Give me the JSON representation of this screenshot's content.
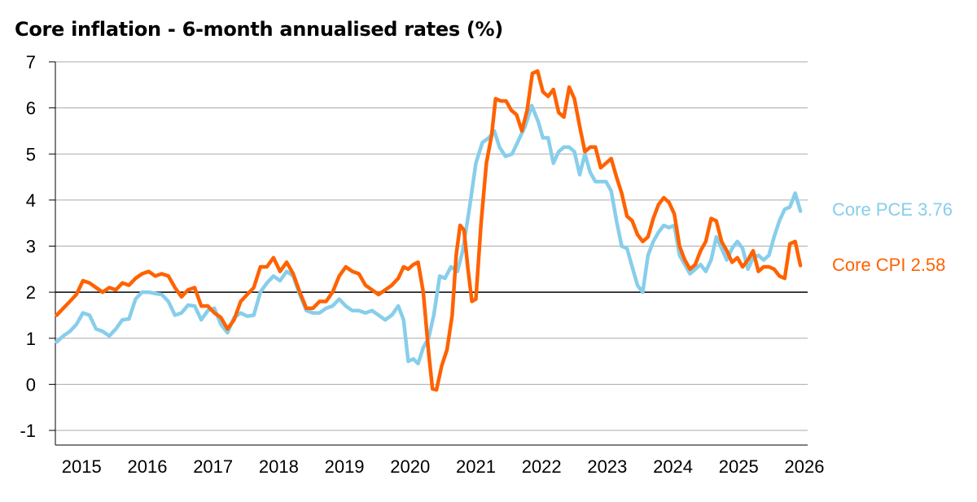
{
  "chart_data": {
    "type": "line",
    "title": "Core inflation - 6-month annualised rates (%)",
    "xlabel": "",
    "ylabel": "",
    "ylim": [
      -1,
      7
    ],
    "xlim": [
      2014.6,
      2026.05
    ],
    "yticks": [
      -1,
      0,
      1,
      2,
      3,
      4,
      5,
      6,
      7
    ],
    "xticks": [
      "2015",
      "2016",
      "2017",
      "2018",
      "2019",
      "2020",
      "2021",
      "2022",
      "2023",
      "2024",
      "2025",
      "2026"
    ],
    "grid": true,
    "reference_line": 2,
    "legend": "right, inline labels at series ends",
    "series": [
      {
        "name": "Core PCE",
        "end_label": "Core PCE 3.76",
        "color": "#87CEEB",
        "points": [
          [
            2014.62,
            0.92
          ],
          [
            2014.72,
            1.05
          ],
          [
            2014.82,
            1.15
          ],
          [
            2014.92,
            1.3
          ],
          [
            2015.02,
            1.55
          ],
          [
            2015.12,
            1.5
          ],
          [
            2015.22,
            1.2
          ],
          [
            2015.32,
            1.15
          ],
          [
            2015.42,
            1.05
          ],
          [
            2015.52,
            1.2
          ],
          [
            2015.62,
            1.4
          ],
          [
            2015.72,
            1.42
          ],
          [
            2015.82,
            1.85
          ],
          [
            2015.92,
            2.0
          ],
          [
            2016.02,
            2.0
          ],
          [
            2016.12,
            1.97
          ],
          [
            2016.22,
            1.95
          ],
          [
            2016.32,
            1.8
          ],
          [
            2016.42,
            1.5
          ],
          [
            2016.52,
            1.55
          ],
          [
            2016.62,
            1.72
          ],
          [
            2016.72,
            1.7
          ],
          [
            2016.82,
            1.4
          ],
          [
            2016.92,
            1.6
          ],
          [
            2017.02,
            1.65
          ],
          [
            2017.12,
            1.3
          ],
          [
            2017.22,
            1.12
          ],
          [
            2017.32,
            1.45
          ],
          [
            2017.42,
            1.55
          ],
          [
            2017.52,
            1.48
          ],
          [
            2017.62,
            1.5
          ],
          [
            2017.72,
            2.0
          ],
          [
            2017.82,
            2.2
          ],
          [
            2017.92,
            2.35
          ],
          [
            2018.02,
            2.25
          ],
          [
            2018.12,
            2.45
          ],
          [
            2018.22,
            2.35
          ],
          [
            2018.32,
            1.95
          ],
          [
            2018.42,
            1.6
          ],
          [
            2018.52,
            1.55
          ],
          [
            2018.62,
            1.55
          ],
          [
            2018.72,
            1.65
          ],
          [
            2018.82,
            1.7
          ],
          [
            2018.92,
            1.85
          ],
          [
            2019.02,
            1.7
          ],
          [
            2019.12,
            1.6
          ],
          [
            2019.22,
            1.6
          ],
          [
            2019.32,
            1.55
          ],
          [
            2019.42,
            1.6
          ],
          [
            2019.52,
            1.5
          ],
          [
            2019.62,
            1.4
          ],
          [
            2019.72,
            1.5
          ],
          [
            2019.82,
            1.7
          ],
          [
            2019.9,
            1.4
          ],
          [
            2019.97,
            0.5
          ],
          [
            2020.05,
            0.55
          ],
          [
            2020.12,
            0.45
          ],
          [
            2020.2,
            0.8
          ],
          [
            2020.28,
            1.0
          ],
          [
            2020.36,
            1.5
          ],
          [
            2020.45,
            2.35
          ],
          [
            2020.53,
            2.3
          ],
          [
            2020.62,
            2.55
          ],
          [
            2020.72,
            2.45
          ],
          [
            2020.8,
            2.9
          ],
          [
            2020.9,
            3.8
          ],
          [
            2021.0,
            4.8
          ],
          [
            2021.1,
            5.25
          ],
          [
            2021.2,
            5.35
          ],
          [
            2021.28,
            5.5
          ],
          [
            2021.36,
            5.15
          ],
          [
            2021.45,
            4.95
          ],
          [
            2021.55,
            5.0
          ],
          [
            2021.65,
            5.3
          ],
          [
            2021.75,
            5.6
          ],
          [
            2021.85,
            6.05
          ],
          [
            2021.95,
            5.7
          ],
          [
            2022.02,
            5.35
          ],
          [
            2022.1,
            5.35
          ],
          [
            2022.18,
            4.8
          ],
          [
            2022.26,
            5.05
          ],
          [
            2022.34,
            5.15
          ],
          [
            2022.42,
            5.15
          ],
          [
            2022.5,
            5.05
          ],
          [
            2022.58,
            4.55
          ],
          [
            2022.66,
            5.0
          ],
          [
            2022.74,
            4.6
          ],
          [
            2022.82,
            4.4
          ],
          [
            2022.9,
            4.4
          ],
          [
            2022.98,
            4.4
          ],
          [
            2023.06,
            4.2
          ],
          [
            2023.14,
            3.55
          ],
          [
            2023.22,
            3.0
          ],
          [
            2023.3,
            2.95
          ],
          [
            2023.38,
            2.55
          ],
          [
            2023.46,
            2.15
          ],
          [
            2023.54,
            2.0
          ],
          [
            2023.62,
            2.8
          ],
          [
            2023.7,
            3.1
          ],
          [
            2023.78,
            3.3
          ],
          [
            2023.86,
            3.45
          ],
          [
            2023.94,
            3.4
          ],
          [
            2024.02,
            3.45
          ],
          [
            2024.1,
            2.8
          ],
          [
            2024.18,
            2.6
          ],
          [
            2024.26,
            2.4
          ],
          [
            2024.34,
            2.5
          ],
          [
            2024.42,
            2.6
          ],
          [
            2024.5,
            2.45
          ],
          [
            2024.58,
            2.7
          ],
          [
            2024.66,
            3.2
          ],
          [
            2024.74,
            2.95
          ],
          [
            2024.82,
            2.7
          ],
          [
            2024.9,
            2.95
          ],
          [
            2024.98,
            3.1
          ],
          [
            2025.06,
            2.95
          ],
          [
            2025.14,
            2.5
          ],
          [
            2025.22,
            2.75
          ],
          [
            2025.3,
            2.8
          ],
          [
            2025.38,
            2.7
          ],
          [
            2025.46,
            2.8
          ],
          [
            2025.54,
            3.2
          ],
          [
            2025.62,
            3.55
          ],
          [
            2025.7,
            3.8
          ],
          [
            2025.78,
            3.85
          ],
          [
            2025.86,
            4.15
          ],
          [
            2025.94,
            3.76
          ]
        ]
      },
      {
        "name": "Core CPI",
        "end_label": "Core CPI 2.58",
        "color": "#FF6200",
        "points": [
          [
            2014.62,
            1.5
          ],
          [
            2014.72,
            1.65
          ],
          [
            2014.82,
            1.8
          ],
          [
            2014.92,
            1.95
          ],
          [
            2015.02,
            2.25
          ],
          [
            2015.12,
            2.2
          ],
          [
            2015.22,
            2.1
          ],
          [
            2015.32,
            2.0
          ],
          [
            2015.42,
            2.1
          ],
          [
            2015.52,
            2.05
          ],
          [
            2015.62,
            2.2
          ],
          [
            2015.72,
            2.15
          ],
          [
            2015.82,
            2.3
          ],
          [
            2015.92,
            2.4
          ],
          [
            2016.02,
            2.45
          ],
          [
            2016.12,
            2.35
          ],
          [
            2016.22,
            2.4
          ],
          [
            2016.32,
            2.35
          ],
          [
            2016.42,
            2.1
          ],
          [
            2016.52,
            1.9
          ],
          [
            2016.62,
            2.05
          ],
          [
            2016.72,
            2.1
          ],
          [
            2016.82,
            1.7
          ],
          [
            2016.92,
            1.7
          ],
          [
            2017.02,
            1.55
          ],
          [
            2017.12,
            1.45
          ],
          [
            2017.22,
            1.2
          ],
          [
            2017.32,
            1.4
          ],
          [
            2017.42,
            1.8
          ],
          [
            2017.52,
            1.95
          ],
          [
            2017.62,
            2.1
          ],
          [
            2017.72,
            2.55
          ],
          [
            2017.82,
            2.55
          ],
          [
            2017.92,
            2.75
          ],
          [
            2018.02,
            2.45
          ],
          [
            2018.12,
            2.65
          ],
          [
            2018.22,
            2.4
          ],
          [
            2018.32,
            2.0
          ],
          [
            2018.42,
            1.65
          ],
          [
            2018.52,
            1.65
          ],
          [
            2018.62,
            1.8
          ],
          [
            2018.72,
            1.8
          ],
          [
            2018.82,
            2.0
          ],
          [
            2018.92,
            2.35
          ],
          [
            2019.02,
            2.55
          ],
          [
            2019.12,
            2.45
          ],
          [
            2019.22,
            2.4
          ],
          [
            2019.32,
            2.15
          ],
          [
            2019.42,
            2.05
          ],
          [
            2019.52,
            1.95
          ],
          [
            2019.62,
            2.05
          ],
          [
            2019.72,
            2.15
          ],
          [
            2019.82,
            2.3
          ],
          [
            2019.9,
            2.55
          ],
          [
            2019.97,
            2.5
          ],
          [
            2020.05,
            2.6
          ],
          [
            2020.12,
            2.65
          ],
          [
            2020.2,
            2.0
          ],
          [
            2020.28,
            0.7
          ],
          [
            2020.34,
            -0.1
          ],
          [
            2020.4,
            -0.12
          ],
          [
            2020.48,
            0.4
          ],
          [
            2020.56,
            0.75
          ],
          [
            2020.64,
            1.5
          ],
          [
            2020.7,
            2.8
          ],
          [
            2020.76,
            3.45
          ],
          [
            2020.82,
            3.35
          ],
          [
            2020.88,
            2.5
          ],
          [
            2020.94,
            1.8
          ],
          [
            2021.0,
            1.85
          ],
          [
            2021.08,
            3.5
          ],
          [
            2021.16,
            4.8
          ],
          [
            2021.24,
            5.4
          ],
          [
            2021.3,
            6.2
          ],
          [
            2021.38,
            6.15
          ],
          [
            2021.46,
            6.15
          ],
          [
            2021.54,
            5.95
          ],
          [
            2021.62,
            5.85
          ],
          [
            2021.7,
            5.5
          ],
          [
            2021.78,
            5.95
          ],
          [
            2021.86,
            6.75
          ],
          [
            2021.94,
            6.8
          ],
          [
            2022.02,
            6.35
          ],
          [
            2022.1,
            6.25
          ],
          [
            2022.18,
            6.4
          ],
          [
            2022.26,
            5.9
          ],
          [
            2022.34,
            5.8
          ],
          [
            2022.42,
            6.45
          ],
          [
            2022.5,
            6.2
          ],
          [
            2022.58,
            5.6
          ],
          [
            2022.66,
            5.05
          ],
          [
            2022.74,
            5.15
          ],
          [
            2022.82,
            5.15
          ],
          [
            2022.9,
            4.7
          ],
          [
            2022.98,
            4.8
          ],
          [
            2023.06,
            4.9
          ],
          [
            2023.14,
            4.5
          ],
          [
            2023.22,
            4.15
          ],
          [
            2023.3,
            3.65
          ],
          [
            2023.38,
            3.55
          ],
          [
            2023.46,
            3.25
          ],
          [
            2023.54,
            3.1
          ],
          [
            2023.62,
            3.2
          ],
          [
            2023.7,
            3.6
          ],
          [
            2023.78,
            3.9
          ],
          [
            2023.86,
            4.05
          ],
          [
            2023.94,
            3.95
          ],
          [
            2024.02,
            3.7
          ],
          [
            2024.1,
            3.0
          ],
          [
            2024.18,
            2.7
          ],
          [
            2024.26,
            2.5
          ],
          [
            2024.34,
            2.6
          ],
          [
            2024.42,
            2.9
          ],
          [
            2024.5,
            3.1
          ],
          [
            2024.58,
            3.6
          ],
          [
            2024.66,
            3.55
          ],
          [
            2024.74,
            3.1
          ],
          [
            2024.82,
            2.9
          ],
          [
            2024.9,
            2.65
          ],
          [
            2024.98,
            2.75
          ],
          [
            2025.06,
            2.55
          ],
          [
            2025.14,
            2.7
          ],
          [
            2025.22,
            2.9
          ],
          [
            2025.3,
            2.45
          ],
          [
            2025.38,
            2.55
          ],
          [
            2025.46,
            2.55
          ],
          [
            2025.54,
            2.5
          ],
          [
            2025.62,
            2.35
          ],
          [
            2025.7,
            2.3
          ],
          [
            2025.78,
            3.05
          ],
          [
            2025.86,
            3.1
          ],
          [
            2025.94,
            2.58
          ]
        ]
      }
    ]
  }
}
